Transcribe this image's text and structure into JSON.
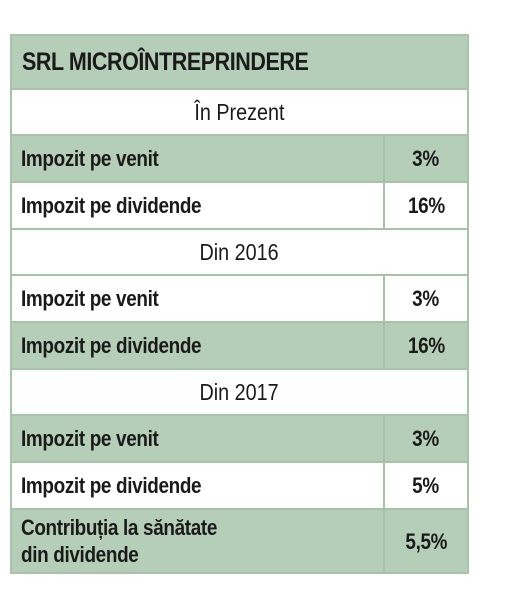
{
  "table": {
    "title": "SRL MICROÎNTREPRINDERE",
    "sections": [
      {
        "heading": "În Prezent",
        "rows": [
          {
            "label": "Impozit pe venit",
            "value": "3%"
          },
          {
            "label": "Impozit pe dividende",
            "value": "16%"
          }
        ]
      },
      {
        "heading": "Din 2016",
        "rows": [
          {
            "label": "Impozit pe venit",
            "value": "3%"
          },
          {
            "label": "Impozit pe dividende",
            "value": "16%"
          }
        ]
      },
      {
        "heading": "Din 2017",
        "rows": [
          {
            "label": "Impozit pe venit",
            "value": "3%"
          },
          {
            "label": "Impozit pe dividende",
            "value": "5%"
          },
          {
            "label_line1": "Contribuția la sănătate",
            "label_line2": "din dividende",
            "value": "5,5%"
          }
        ]
      }
    ]
  },
  "colors": {
    "shaded_row": "#b5ceb7",
    "border": "#a9c3ab",
    "text": "#1a1a1a"
  }
}
